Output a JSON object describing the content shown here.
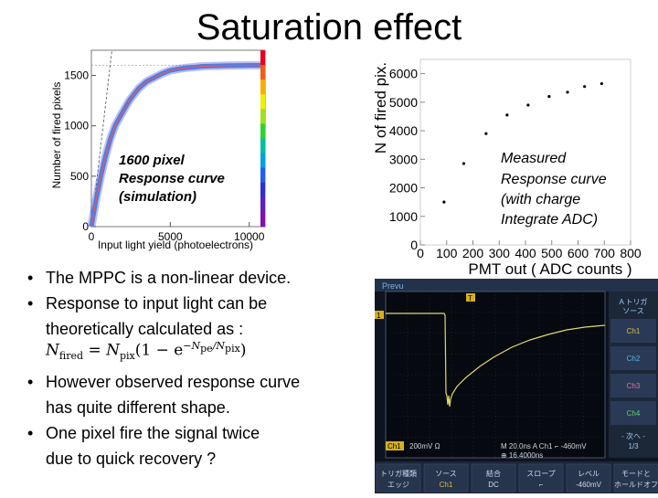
{
  "title": "Saturation effect",
  "chart_data": [
    {
      "type": "scatter",
      "xlabel": "Input light yield (photoelectrons)",
      "ylabel": "Number of fired pixels",
      "xticks": [
        "0",
        "5000",
        "10000"
      ],
      "yticks": [
        "0",
        "500",
        "1000",
        "1500"
      ],
      "xlim": [
        0,
        11000
      ],
      "ylim": [
        0,
        1750
      ],
      "annotation": [
        "1600 pixel",
        "Response curve",
        "(simulation)"
      ],
      "x": [
        0,
        300,
        600,
        900,
        1200,
        1500,
        1800,
        2100,
        2400,
        2700,
        3000,
        3500,
        4000,
        4500,
        5000,
        5500,
        6000,
        6500,
        7000,
        7500,
        8000,
        8500,
        9000,
        9500,
        10000,
        10500,
        11000
      ],
      "y": [
        0,
        271,
        500,
        701,
        870,
        1000,
        1086,
        1169,
        1250,
        1313,
        1372,
        1440,
        1480,
        1520,
        1550,
        1565,
        1575,
        1582,
        1590,
        1593,
        1595,
        1597,
        1598,
        1599,
        1600,
        1600,
        1600
      ]
    },
    {
      "type": "scatter",
      "xlabel": "PMT out ( ADC counts )",
      "ylabel": "N of fired pix.",
      "xticks": [
        "0",
        "100",
        "200",
        "300",
        "400",
        "500",
        "600",
        "700",
        "800"
      ],
      "yticks": [
        "0",
        "1000",
        "2000",
        "3000",
        "4000",
        "5000",
        "6000"
      ],
      "xlim": [
        0,
        800
      ],
      "ylim": [
        0,
        6500
      ],
      "annotation": [
        "Measured",
        "Response curve",
        "(with charge",
        "Integrate ADC)"
      ],
      "x": [
        90,
        165,
        250,
        330,
        410,
        490,
        560,
        625,
        690
      ],
      "y": [
        1500,
        2850,
        3900,
        4550,
        4900,
        5200,
        5350,
        5550,
        5650
      ]
    }
  ],
  "bullets": [
    [
      "The MPPC is a non-linear device."
    ],
    [
      "Response to input light can be",
      "theoretically calculated as :"
    ],
    [
      "However observed response curve",
      "has quite different shape."
    ],
    [
      "One pixel fire the signal twice",
      "due to quick recovery ?"
    ]
  ],
  "formula": {
    "lhs": "N",
    "lhs_sub": "fired",
    "eq": "=",
    "n": "N",
    "n_sub": "pix",
    "paren_open": "(1 − e",
    "exp_n": "−N",
    "exp_n_sub": "pe",
    "exp_slash": "/N",
    "exp_d_sub": "pix",
    "paren_close": ")"
  },
  "scope": {
    "brand": "Prevu",
    "channel_marker": "1",
    "trigger_marker": "T",
    "ground_marker": "1",
    "right_menu": [
      "A トリガ",
      "ソース",
      "Ch1",
      "Ch2",
      "Ch3",
      "Ch4",
      "- 次へ -",
      "1/3"
    ],
    "status": [
      "Ch1",
      "200mV Ω",
      "M 20.0ns A Ch1 ⌐ -460mV",
      "⊕ 16.4000ns"
    ],
    "bottom_menu": [
      "トリガ種類",
      "エッジ",
      "ソース",
      "Ch1",
      "結合",
      "DC",
      "スロープ",
      "⌐",
      "レベル",
      "-460mV",
      "モードと",
      "ホールドオフ"
    ]
  }
}
